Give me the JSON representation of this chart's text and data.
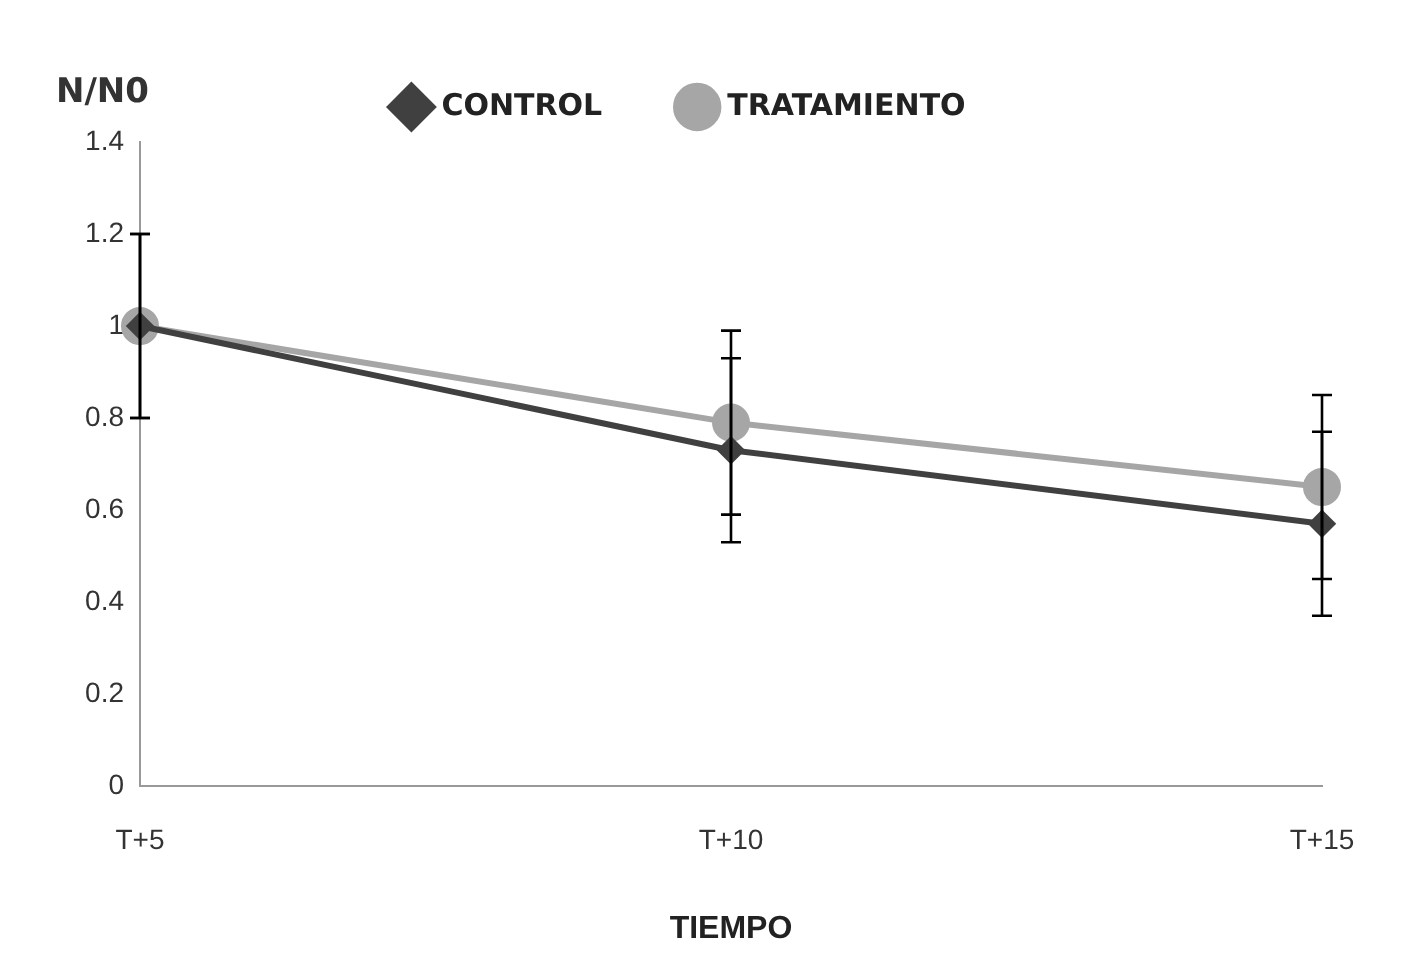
{
  "chart_data": {
    "type": "line",
    "xlabel": "TIEMPO",
    "ylabel": "N/N0",
    "categories": [
      "T+5",
      "T+10",
      "T+15"
    ],
    "series": [
      {
        "name": "CONTROL",
        "color": "#404040",
        "marker": "diamond",
        "values": [
          1,
          0.73,
          0.57
        ],
        "errors": [
          0.2,
          0.2,
          0.2
        ]
      },
      {
        "name": "TRATAMIENTO",
        "color": "#a6a6a6",
        "marker": "circle",
        "values": [
          1,
          0.79,
          0.65
        ],
        "errors": [
          0.2,
          0.2,
          0.2
        ]
      }
    ],
    "ylim": [
      0,
      1.4
    ],
    "yticks": [
      0,
      0.2,
      0.4,
      0.6,
      0.8,
      1,
      1.2,
      1.4
    ],
    "grid": false,
    "legend": "top"
  }
}
